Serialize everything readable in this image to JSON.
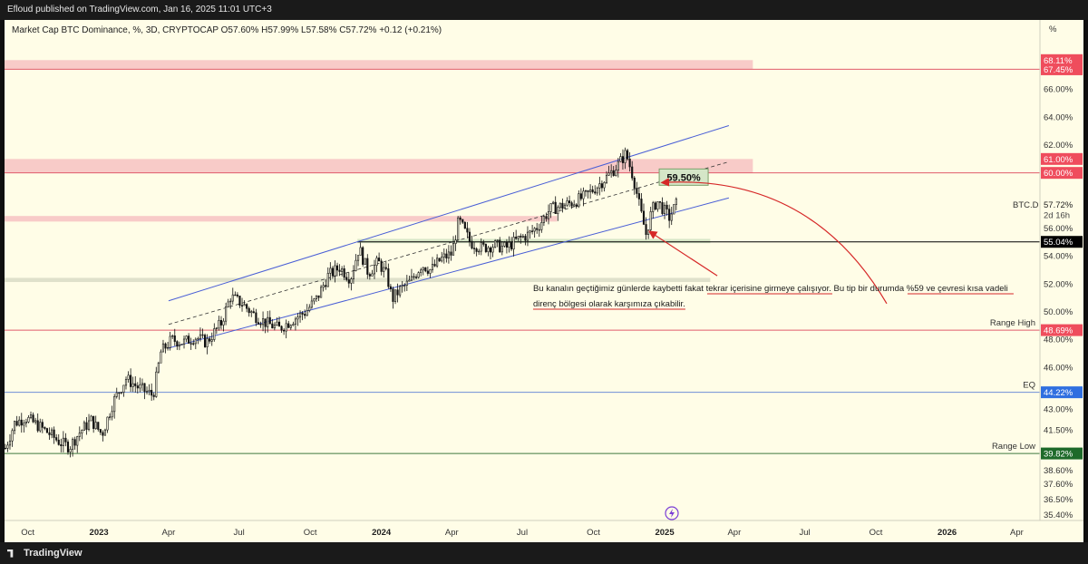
{
  "header": {
    "publisher": "Efloud published on TradingView.com, Jan 16, 2025 11:01 UTC+3"
  },
  "legend": {
    "text": "Market Cap BTC Dominance, %, 3D, CRYPTOCAP  O57.60%  H57.99%  L57.58%  C57.72%  +0.12 (+0.21%)"
  },
  "footer": {
    "brand": "TradingView"
  },
  "chart_data": {
    "type": "candlestick",
    "symbol": "BTC.D",
    "timeframe": "3D",
    "last_close": "57.72%",
    "countdown": "2d 16h",
    "ylim": [
      35,
      71
    ],
    "xlim": [
      "2022-09-01",
      "2026-05-01"
    ],
    "y_axis_unit": "%",
    "y_ticks": [
      "66.00%",
      "64.00%",
      "62.00%",
      "56.00%",
      "54.00%",
      "52.00%",
      "50.00%",
      "48.00%",
      "46.00%",
      "44.00%",
      "43.00%",
      "41.50%",
      "40.00%",
      "38.60%",
      "37.60%",
      "36.50%",
      "35.40%"
    ],
    "x_ticks": [
      {
        "label": "Oct",
        "date": "2022-10-01",
        "bold": false
      },
      {
        "label": "2023",
        "date": "2023-01-01",
        "bold": true
      },
      {
        "label": "Apr",
        "date": "2023-04-01",
        "bold": false
      },
      {
        "label": "Jul",
        "date": "2023-07-01",
        "bold": false
      },
      {
        "label": "Oct",
        "date": "2023-10-01",
        "bold": false
      },
      {
        "label": "2024",
        "date": "2024-01-01",
        "bold": true
      },
      {
        "label": "Apr",
        "date": "2024-04-01",
        "bold": false
      },
      {
        "label": "Jul",
        "date": "2024-07-01",
        "bold": false
      },
      {
        "label": "Oct",
        "date": "2024-10-01",
        "bold": false
      },
      {
        "label": "2025",
        "date": "2025-01-01",
        "bold": true
      },
      {
        "label": "Apr",
        "date": "2025-04-01",
        "bold": false
      },
      {
        "label": "Jul",
        "date": "2025-07-01",
        "bold": false
      },
      {
        "label": "Oct",
        "date": "2025-10-01",
        "bold": false
      },
      {
        "label": "2026",
        "date": "2026-01-01",
        "bold": true
      },
      {
        "label": "Apr",
        "date": "2026-04-01",
        "bold": false
      }
    ],
    "price_path": [
      [
        "2022-09-02",
        40.2
      ],
      [
        "2022-09-14",
        42.0
      ],
      [
        "2022-09-28",
        42.4
      ],
      [
        "2022-10-15",
        41.8
      ],
      [
        "2022-10-30",
        41.2
      ],
      [
        "2022-11-12",
        40.6
      ],
      [
        "2022-11-24",
        40.3
      ],
      [
        "2022-12-08",
        41.4
      ],
      [
        "2022-12-22",
        42.2
      ],
      [
        "2023-01-05",
        41.2
      ],
      [
        "2023-01-20",
        43.6
      ],
      [
        "2023-02-05",
        45.2
      ],
      [
        "2023-02-20",
        44.6
      ],
      [
        "2023-03-05",
        44.2
      ],
      [
        "2023-03-12",
        44.0
      ],
      [
        "2023-03-22",
        47.1
      ],
      [
        "2023-04-05",
        48.0
      ],
      [
        "2023-04-20",
        47.8
      ],
      [
        "2023-05-05",
        48.2
      ],
      [
        "2023-05-20",
        47.8
      ],
      [
        "2023-06-08",
        49.2
      ],
      [
        "2023-06-20",
        51.1
      ],
      [
        "2023-07-05",
        50.6
      ],
      [
        "2023-07-20",
        49.8
      ],
      [
        "2023-08-05",
        49.2
      ],
      [
        "2023-08-22",
        48.8
      ],
      [
        "2023-09-10",
        49.5
      ],
      [
        "2023-09-25",
        50.0
      ],
      [
        "2023-10-10",
        51.0
      ],
      [
        "2023-10-24",
        52.6
      ],
      [
        "2023-11-08",
        53.2
      ],
      [
        "2023-11-22",
        52.4
      ],
      [
        "2023-12-03",
        54.6
      ],
      [
        "2023-12-15",
        52.8
      ],
      [
        "2023-12-28",
        53.6
      ],
      [
        "2024-01-08",
        52.6
      ],
      [
        "2024-01-15",
        50.9
      ],
      [
        "2024-01-25",
        51.6
      ],
      [
        "2024-02-08",
        52.2
      ],
      [
        "2024-02-22",
        53.4
      ],
      [
        "2024-03-05",
        53.0
      ],
      [
        "2024-03-18",
        53.8
      ],
      [
        "2024-04-01",
        54.2
      ],
      [
        "2024-04-10",
        56.6
      ],
      [
        "2024-04-25",
        55.0
      ],
      [
        "2024-05-10",
        54.6
      ],
      [
        "2024-05-25",
        54.8
      ],
      [
        "2024-06-10",
        54.6
      ],
      [
        "2024-06-25",
        55.2
      ],
      [
        "2024-07-10",
        55.6
      ],
      [
        "2024-07-22",
        56.2
      ],
      [
        "2024-08-06",
        57.4
      ],
      [
        "2024-08-20",
        57.6
      ],
      [
        "2024-09-05",
        57.9
      ],
      [
        "2024-09-20",
        58.3
      ],
      [
        "2024-10-05",
        59.0
      ],
      [
        "2024-10-20",
        59.8
      ],
      [
        "2024-11-02",
        60.6
      ],
      [
        "2024-11-12",
        61.4
      ],
      [
        "2024-11-22",
        59.6
      ],
      [
        "2024-12-01",
        57.2
      ],
      [
        "2024-12-08",
        55.6
      ],
      [
        "2024-12-15",
        57.2
      ],
      [
        "2024-12-22",
        58.0
      ],
      [
        "2024-12-30",
        57.4
      ],
      [
        "2025-01-07",
        56.8
      ],
      [
        "2025-01-16",
        57.72
      ]
    ],
    "zones": [
      {
        "y1": 67.45,
        "y2": 68.11,
        "x1": "2022-09-01",
        "x2": "2025-04-25",
        "color": "#f7c2c2"
      },
      {
        "y1": 60.0,
        "y2": 61.0,
        "x1": "2022-09-01",
        "x2": "2025-04-25",
        "color": "#f7c2c2"
      },
      {
        "y1": 56.5,
        "y2": 56.9,
        "x1": "2022-09-01",
        "x2": "2024-08-15",
        "color": "#f7c2c2"
      },
      {
        "y1": 54.95,
        "y2": 55.25,
        "x1": "2023-12-01",
        "x2": "2025-03-01",
        "color": "#cfe0bf"
      },
      {
        "y1": 52.15,
        "y2": 52.45,
        "x1": "2022-09-01",
        "x2": "2025-03-01",
        "color": "#d9dcc5"
      }
    ],
    "channel": {
      "upper": [
        [
          "2023-04-01",
          50.8
        ],
        [
          "2025-03-25",
          63.4
        ]
      ],
      "lower": [
        [
          "2023-04-01",
          47.4
        ],
        [
          "2025-03-25",
          58.2
        ]
      ],
      "mid": [
        [
          "2023-04-01",
          49.1
        ],
        [
          "2025-03-25",
          60.8
        ]
      ]
    },
    "horizontal_lines": [
      {
        "y": 55.04,
        "color": "#000000",
        "x1": "2023-12-01"
      },
      {
        "y": 48.69,
        "color": "#e05b6b",
        "x1": "2022-09-01"
      },
      {
        "y": 44.22,
        "color": "#6f8fd6",
        "x1": "2022-09-01"
      },
      {
        "y": 39.82,
        "color": "#3f7a3f",
        "x1": "2022-09-01"
      }
    ],
    "price_tags": [
      {
        "y": 68.11,
        "text": "68.11%",
        "bg": "#ef4d5d",
        "fg": "#ffffff"
      },
      {
        "y": 67.45,
        "text": "67.45%",
        "bg": "#ef4d5d",
        "fg": "#ffffff"
      },
      {
        "y": 61.0,
        "text": "61.00%",
        "bg": "#ef4d5d",
        "fg": "#ffffff"
      },
      {
        "y": 60.0,
        "text": "60.00%",
        "bg": "#ef4d5d",
        "fg": "#ffffff"
      },
      {
        "y": 57.72,
        "text": "57.72%",
        "bg": "#fffde7",
        "fg": "#222222"
      },
      {
        "y": 55.04,
        "text": "55.04%",
        "bg": "#000000",
        "fg": "#ffffff"
      },
      {
        "y": 48.69,
        "text": "48.69%",
        "bg": "#ef4d5d",
        "fg": "#ffffff"
      },
      {
        "y": 44.22,
        "text": "44.22%",
        "bg": "#2f6fe0",
        "fg": "#ffffff"
      },
      {
        "y": 39.82,
        "text": "39.82%",
        "bg": "#1e6a2a",
        "fg": "#ffffff"
      }
    ],
    "level_labels": [
      {
        "y": 48.69,
        "text": "Range High"
      },
      {
        "y": 44.22,
        "text": "EQ"
      },
      {
        "y": 39.82,
        "text": "Range Low"
      }
    ],
    "callout": {
      "text": "59.50%",
      "x": "2024-12-25",
      "y": 59.5
    },
    "note_lines": [
      "Bu kanalın geçtiğimiz günlerde kaybetti fakat tekrar içerisine girmeye çalışıyor. Bu tip bir durumda %59 ve çevresi kısa vadeli",
      "direnç bölgesi olarak karşımıza çıkabilir."
    ],
    "note_anchor": {
      "x": "2024-07-15",
      "y": 51.5
    },
    "arrows": [
      {
        "from": [
          "2025-03-10",
          52.6
        ],
        "to": [
          "2024-12-12",
          55.8
        ]
      },
      {
        "from": [
          "2025-10-15",
          50.6
        ],
        "to": [
          "2024-12-28",
          59.3
        ]
      }
    ]
  }
}
